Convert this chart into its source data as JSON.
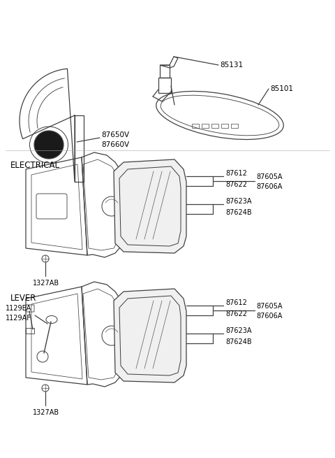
{
  "bg_color": "#ffffff",
  "line_color": "#404040",
  "text_color": "#000000",
  "figsize": [
    4.8,
    6.55
  ],
  "dpi": 100,
  "parts": {
    "top_left_labels": [
      "87650V",
      "87660V"
    ],
    "top_right_labels": [
      "85131",
      "85101"
    ],
    "electrical_label": "ELECTRICAL",
    "lever_label": "LEVER",
    "right_labels_top": [
      "87612",
      "87622"
    ],
    "right_labels_mid": [
      "87605A",
      "87606A"
    ],
    "right_labels_bot": [
      "87623A",
      "87624B"
    ],
    "bottom_label": "1327AB",
    "lever_left_labels": [
      "1129EA",
      "1129AF"
    ]
  }
}
